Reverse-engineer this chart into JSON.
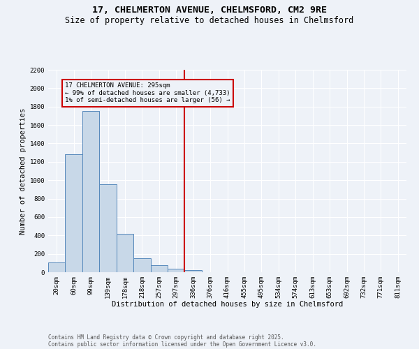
{
  "title_line1": "17, CHELMERTON AVENUE, CHELMSFORD, CM2 9RE",
  "title_line2": "Size of property relative to detached houses in Chelmsford",
  "xlabel": "Distribution of detached houses by size in Chelmsford",
  "ylabel": "Number of detached properties",
  "categories": [
    "20sqm",
    "60sqm",
    "99sqm",
    "139sqm",
    "178sqm",
    "218sqm",
    "257sqm",
    "297sqm",
    "336sqm",
    "376sqm",
    "416sqm",
    "455sqm",
    "495sqm",
    "534sqm",
    "574sqm",
    "613sqm",
    "653sqm",
    "692sqm",
    "732sqm",
    "771sqm",
    "811sqm"
  ],
  "values": [
    110,
    1285,
    1755,
    955,
    420,
    150,
    75,
    40,
    22,
    0,
    0,
    0,
    0,
    0,
    0,
    0,
    0,
    0,
    0,
    0,
    0
  ],
  "bar_color": "#c8d8e8",
  "bar_edge_color": "#5588bb",
  "vline_x": 7.5,
  "vline_color": "#cc0000",
  "annotation_text": "17 CHELMERTON AVENUE: 295sqm\n← 99% of detached houses are smaller (4,733)\n1% of semi-detached houses are larger (56) →",
  "annotation_box_color": "#cc0000",
  "ylim": [
    0,
    2200
  ],
  "yticks": [
    0,
    200,
    400,
    600,
    800,
    1000,
    1200,
    1400,
    1600,
    1800,
    2000,
    2200
  ],
  "background_color": "#eef2f8",
  "grid_color": "#ffffff",
  "footer_line1": "Contains HM Land Registry data © Crown copyright and database right 2025.",
  "footer_line2": "Contains public sector information licensed under the Open Government Licence v3.0.",
  "title_fontsize": 9.5,
  "subtitle_fontsize": 8.5,
  "axis_label_fontsize": 7.5,
  "tick_fontsize": 6.5,
  "annotation_fontsize": 6.5,
  "footer_fontsize": 5.5
}
